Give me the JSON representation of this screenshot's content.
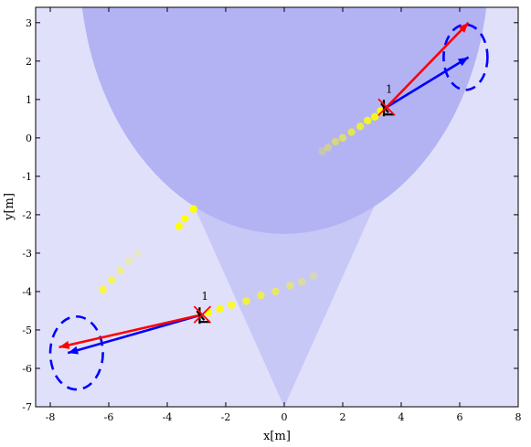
{
  "chart_data": {
    "type": "scatter",
    "xlabel": "x[m]",
    "ylabel": "y[m]",
    "xlim": [
      -8.5,
      8
    ],
    "ylim": [
      -7,
      3.4
    ],
    "xticks": [
      -8,
      -6,
      -4,
      -2,
      0,
      2,
      4,
      6,
      8
    ],
    "yticks": [
      -7,
      -6,
      -5,
      -4,
      -3,
      -2,
      -1,
      0,
      1,
      2,
      3
    ],
    "grid": false,
    "colors": {
      "zone_far": "#e0e0fb",
      "zone_mid": "#c8c8f7",
      "zone_near": "#b3b3f4",
      "trail": "#ffff00",
      "true_velocity": "#ff0000",
      "estimated_velocity": "#0000ff",
      "uncertainty": "#0000ff",
      "pose": "#000000",
      "detection": "#ff0000"
    },
    "regions": {
      "near_circle": {
        "center": [
          0,
          4.5
        ],
        "radius": 7.0
      },
      "mid_wedge_apex": [
        0,
        -7
      ]
    },
    "agents": [
      {
        "id_label": "1",
        "position": [
          3.5,
          0.8
        ],
        "true_velocity_tip": [
          6.3,
          3.0
        ],
        "estimated_velocity_tip": [
          6.3,
          2.1
        ],
        "uncertainty_center": [
          6.2,
          2.1
        ],
        "uncertainty_radius": [
          0.75,
          0.85
        ],
        "trail": [
          {
            "x": 1.3,
            "y": -0.35,
            "o": 0.25
          },
          {
            "x": 1.5,
            "y": -0.25,
            "o": 0.35
          },
          {
            "x": 1.75,
            "y": -0.1,
            "o": 0.45
          },
          {
            "x": 2.0,
            "y": 0.0,
            "o": 0.55
          },
          {
            "x": 2.3,
            "y": 0.15,
            "o": 0.65
          },
          {
            "x": 2.6,
            "y": 0.3,
            "o": 0.75
          },
          {
            "x": 2.85,
            "y": 0.45,
            "o": 0.85
          },
          {
            "x": 3.1,
            "y": 0.55,
            "o": 0.9
          },
          {
            "x": 3.3,
            "y": 0.7,
            "o": 1.0
          }
        ]
      },
      {
        "id_label": "1",
        "position": [
          -2.8,
          -4.6
        ],
        "true_velocity_tip": [
          -7.7,
          -5.45
        ],
        "estimated_velocity_tip": [
          -7.4,
          -5.6
        ],
        "uncertainty_center": [
          -7.1,
          -5.6
        ],
        "uncertainty_radius": [
          0.9,
          0.95
        ],
        "trail": [
          {
            "x": 1.0,
            "y": -3.6,
            "o": 0.25
          },
          {
            "x": 0.6,
            "y": -3.75,
            "o": 0.35
          },
          {
            "x": 0.2,
            "y": -3.85,
            "o": 0.45
          },
          {
            "x": -0.3,
            "y": -4.0,
            "o": 0.55
          },
          {
            "x": -0.8,
            "y": -4.1,
            "o": 0.65
          },
          {
            "x": -1.3,
            "y": -4.25,
            "o": 0.75
          },
          {
            "x": -1.8,
            "y": -4.35,
            "o": 0.85
          },
          {
            "x": -2.2,
            "y": -4.45,
            "o": 0.9
          },
          {
            "x": -2.6,
            "y": -4.55,
            "o": 1.0
          }
        ]
      }
    ],
    "extra_trail": [
      {
        "x": -3.1,
        "y": -1.85,
        "o": 1.0
      },
      {
        "x": -3.4,
        "y": -2.1,
        "o": 1.0
      },
      {
        "x": -3.6,
        "y": -2.3,
        "o": 1.0
      },
      {
        "x": -5.0,
        "y": -3.0,
        "o": 0.2
      },
      {
        "x": -5.3,
        "y": -3.2,
        "o": 0.3
      },
      {
        "x": -5.6,
        "y": -3.45,
        "o": 0.45
      },
      {
        "x": -5.9,
        "y": -3.7,
        "o": 0.6
      },
      {
        "x": -6.2,
        "y": -3.95,
        "o": 0.75
      }
    ]
  }
}
